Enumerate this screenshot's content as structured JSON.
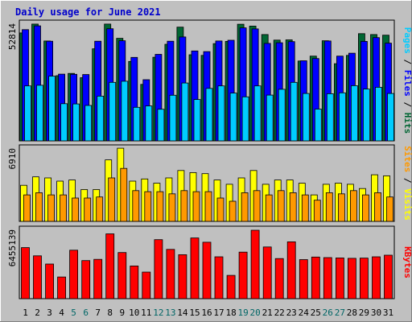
{
  "chart_data": {
    "type": "bar",
    "title": "Daily usage for June 2021",
    "title_color": "#0000cc",
    "days": [
      "1",
      "2",
      "3",
      "4",
      "5",
      "6",
      "7",
      "8",
      "9",
      "10",
      "11",
      "12",
      "13",
      "14",
      "15",
      "16",
      "17",
      "18",
      "19",
      "20",
      "21",
      "22",
      "23",
      "24",
      "25",
      "26",
      "27",
      "28",
      "29",
      "30",
      "31"
    ],
    "weekend_days": [
      "5",
      "6",
      "12",
      "13",
      "19",
      "20",
      "26",
      "27"
    ],
    "weekend_color": "#006666",
    "weekday_color": "#000000",
    "panels": [
      {
        "ymax_label": "52814",
        "ymax": 52814,
        "series": [
          {
            "name": "Hits",
            "color": "#006633",
            "values": [
              48500,
              52500,
              44900,
              29300,
              30300,
              28400,
              41400,
              52500,
              46100,
              35700,
              25400,
              37600,
              43400,
              51100,
              38700,
              38400,
              43700,
              44700,
              52400,
              51600,
              47800,
              45300,
              45400,
              35900,
              38100,
              45000,
              34700,
              38400,
              48200,
              47800,
              47500
            ]
          },
          {
            "name": "Files",
            "color": "#0000ff",
            "values": [
              50000,
              51700,
              44800,
              30000,
              29900,
              29800,
              44800,
              50400,
              45000,
              37500,
              27500,
              38900,
              44800,
              46700,
              40400,
              40100,
              44900,
              45200,
              50800,
              50300,
              43800,
              44100,
              44600,
              36000,
              37000,
              44900,
              38100,
              39400,
              44700,
              46400,
              43900
            ]
          },
          {
            "name": "Pages",
            "color": "#00ccff",
            "values": [
              24700,
              25000,
              29100,
              16700,
              16600,
              15900,
              20100,
              26300,
              26800,
              15100,
              15700,
              14200,
              20500,
              26000,
              18600,
              23600,
              24700,
              21500,
              19800,
              24700,
              20600,
              23200,
              26300,
              21300,
              14300,
              21200,
              21600,
              24800,
              23300,
              24100,
              21300
            ]
          }
        ]
      },
      {
        "ymax_label": "6910",
        "ymax": 6910,
        "series": [
          {
            "name": "Visits",
            "color": "#ffff00",
            "values": [
              3400,
              4200,
              4100,
              3800,
              3900,
              3000,
              3000,
              5800,
              6900,
              3800,
              4000,
              3600,
              4100,
              4800,
              4600,
              4500,
              3900,
              3500,
              4100,
              4800,
              3500,
              3900,
              3900,
              3600,
              2500,
              3500,
              3600,
              3500,
              3100,
              4400,
              4300
            ]
          },
          {
            "name": "Sites",
            "color": "#ff9900",
            "values": [
              2500,
              2700,
              2500,
              2500,
              2200,
              2200,
              2300,
              4100,
              5000,
              2900,
              2800,
              2800,
              2600,
              2900,
              2800,
              2800,
              2200,
              1900,
              2700,
              2900,
              2500,
              2900,
              2700,
              2500,
              2000,
              2700,
              2600,
              2900,
              2500,
              2700,
              2300
            ]
          }
        ]
      },
      {
        "ymax_label": "6455139",
        "ymax": 6455139,
        "series": [
          {
            "name": "KBytes",
            "color": "#ff0000",
            "values": [
              4760000,
              3990000,
              3230000,
              2020000,
              4520000,
              3550000,
              3660000,
              6040000,
              4300000,
              3050000,
              2480000,
              5500000,
              4590000,
              4100000,
              5660000,
              5260000,
              3900000,
              2170000,
              4340000,
              6380000,
              4820000,
              3740000,
              5300000,
              3640000,
              3880000,
              3830000,
              3800000,
              3760000,
              3780000,
              3900000,
              4050000
            ]
          }
        ]
      }
    ],
    "side_labels": [
      {
        "parts": [
          [
            "Pages",
            "#00ccff"
          ],
          [
            " / ",
            "#000000"
          ],
          [
            "Files",
            "#0000ff"
          ],
          [
            " / ",
            "#000000"
          ],
          [
            "Hits",
            "#006633"
          ]
        ]
      },
      {
        "parts": [
          [
            "Sites",
            "#ff9900"
          ],
          [
            " / ",
            "#000000"
          ],
          [
            "Visits",
            "#ffff00"
          ]
        ]
      },
      {
        "parts": [
          [
            "KBytes",
            "#ff0000"
          ]
        ]
      }
    ]
  }
}
